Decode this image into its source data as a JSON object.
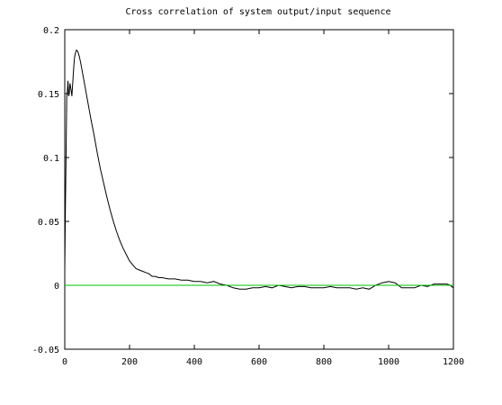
{
  "chart_data": {
    "type": "line",
    "title": "Cross correlation of system output/input sequence",
    "xlabel": "",
    "ylabel": "",
    "xlim": [
      0,
      1200
    ],
    "ylim": [
      -0.05,
      0.2
    ],
    "xticks": [
      0,
      200,
      400,
      600,
      800,
      1000,
      1200
    ],
    "xtick_labels": [
      "0",
      "200",
      "400",
      "600",
      "800",
      "1000",
      "1200"
    ],
    "yticks": [
      -0.05,
      0,
      0.05,
      0.1,
      0.15,
      0.2
    ],
    "ytick_labels": [
      "-0.05",
      "0",
      "0.05",
      "0.1",
      "0.15",
      "0.2"
    ],
    "grid": false,
    "series": [
      {
        "color": "#000000",
        "x": [
          0,
          2,
          4,
          6,
          8,
          10,
          12,
          14,
          16,
          18,
          20,
          22,
          25,
          28,
          30,
          33,
          36,
          40,
          45,
          50,
          55,
          60,
          70,
          80,
          90,
          100,
          110,
          120,
          130,
          140,
          150,
          160,
          170,
          180,
          190,
          200,
          210,
          220,
          230,
          240,
          250,
          260,
          270,
          280,
          290,
          300,
          320,
          340,
          360,
          380,
          400,
          420,
          440,
          460,
          480,
          500,
          520,
          540,
          560,
          580,
          600,
          620,
          640,
          660,
          680,
          700,
          720,
          740,
          760,
          780,
          800,
          820,
          840,
          860,
          880,
          900,
          920,
          940,
          960,
          980,
          1000,
          1020,
          1040,
          1060,
          1080,
          1100,
          1120,
          1140,
          1160,
          1180,
          1190,
          1200
        ],
        "y": [
          0.012,
          0.06,
          0.1,
          0.148,
          0.152,
          0.16,
          0.148,
          0.15,
          0.158,
          0.155,
          0.152,
          0.148,
          0.16,
          0.172,
          0.178,
          0.182,
          0.184,
          0.183,
          0.179,
          0.173,
          0.166,
          0.159,
          0.145,
          0.131,
          0.118,
          0.104,
          0.091,
          0.08,
          0.069,
          0.059,
          0.05,
          0.042,
          0.035,
          0.029,
          0.024,
          0.019,
          0.016,
          0.013,
          0.012,
          0.011,
          0.01,
          0.009,
          0.007,
          0.007,
          0.006,
          0.006,
          0.005,
          0.005,
          0.004,
          0.004,
          0.003,
          0.003,
          0.002,
          0.003,
          0.001,
          0.0,
          -0.002,
          -0.003,
          -0.003,
          -0.002,
          -0.002,
          -0.001,
          -0.002,
          0.0,
          -0.001,
          -0.002,
          -0.001,
          -0.001,
          -0.002,
          -0.002,
          -0.002,
          -0.001,
          -0.002,
          -0.002,
          -0.002,
          -0.003,
          -0.002,
          -0.003,
          0.0,
          0.002,
          0.003,
          0.002,
          -0.002,
          -0.002,
          -0.002,
          0.0,
          -0.001,
          0.001,
          0.001,
          0.001,
          0.0,
          -0.002
        ]
      },
      {
        "color": "#00c000",
        "x": [
          0,
          1200
        ],
        "y": [
          0,
          0
        ]
      }
    ]
  }
}
